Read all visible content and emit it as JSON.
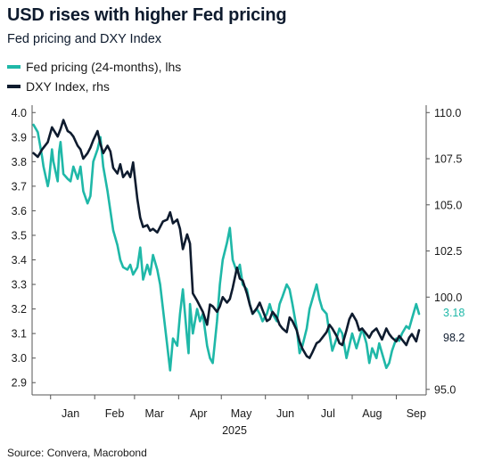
{
  "chart_data": {
    "type": "line",
    "title": "USD rises with higher Fed pricing",
    "subtitle": "Fed pricing and DXY Index",
    "source": "Source: Convera, Macrobond",
    "xlabel": "2025",
    "x_ticks": [
      "Jan",
      "Feb",
      "Mar",
      "Apr",
      "May",
      "Jun",
      "Jul",
      "Aug",
      "Sep"
    ],
    "y_left": {
      "ylim": [
        2.9,
        4.0
      ],
      "ticks": [
        "4.0",
        "3.9",
        "3.8",
        "3.7",
        "3.6",
        "3.5",
        "3.4",
        "3.3",
        "3.2",
        "3.1",
        "3.0",
        "2.9"
      ]
    },
    "y_right": {
      "ylim": [
        95.0,
        110.0
      ],
      "ticks": [
        "110.0",
        "107.5",
        "105.0",
        "102.5",
        "100.0",
        "95.0"
      ]
    },
    "legend_position": "top-left",
    "grid": false,
    "series": [
      {
        "name": "Fed pricing (24-months), lhs",
        "axis": "left",
        "color": "#1fb8a8",
        "end_label": "3.18",
        "x": [
          "2024-12-20",
          "2024-12-23",
          "2024-12-26",
          "2024-12-27",
          "2024-12-30",
          "2024-12-31",
          "2025-01-02",
          "2025-01-03",
          "2025-01-06",
          "2025-01-07",
          "2025-01-08",
          "2025-01-10",
          "2025-01-13",
          "2025-01-15",
          "2025-01-17",
          "2025-01-20",
          "2025-01-22",
          "2025-01-24",
          "2025-01-27",
          "2025-01-29",
          "2025-01-31",
          "2025-02-03",
          "2025-02-05",
          "2025-02-07",
          "2025-02-10",
          "2025-02-12",
          "2025-02-14",
          "2025-02-17",
          "2025-02-19",
          "2025-02-21",
          "2025-02-24",
          "2025-02-26",
          "2025-02-28",
          "2025-03-03",
          "2025-03-05",
          "2025-03-07",
          "2025-03-10",
          "2025-03-12",
          "2025-03-14",
          "2025-03-17",
          "2025-03-19",
          "2025-03-21",
          "2025-03-24",
          "2025-03-26",
          "2025-03-28",
          "2025-03-31",
          "2025-04-02",
          "2025-04-04",
          "2025-04-07",
          "2025-04-08",
          "2025-04-09",
          "2025-04-11",
          "2025-04-14",
          "2025-04-16",
          "2025-04-18",
          "2025-04-21",
          "2025-04-23",
          "2025-04-25",
          "2025-04-28",
          "2025-04-30",
          "2025-05-02",
          "2025-05-05",
          "2025-05-07",
          "2025-05-09",
          "2025-05-12",
          "2025-05-14",
          "2025-05-16",
          "2025-05-19",
          "2025-05-21",
          "2025-05-23",
          "2025-05-26",
          "2025-05-28",
          "2025-05-30",
          "2025-06-02",
          "2025-06-04",
          "2025-06-06",
          "2025-06-09",
          "2025-06-11",
          "2025-06-13",
          "2025-06-16",
          "2025-06-18",
          "2025-06-20",
          "2025-06-23",
          "2025-06-25",
          "2025-06-27",
          "2025-06-30",
          "2025-07-02",
          "2025-07-03",
          "2025-07-07",
          "2025-07-09",
          "2025-07-11",
          "2025-07-14",
          "2025-07-16",
          "2025-07-18",
          "2025-07-21",
          "2025-07-23",
          "2025-07-25",
          "2025-07-28",
          "2025-07-30",
          "2025-08-01",
          "2025-08-04",
          "2025-08-06",
          "2025-08-08",
          "2025-08-11",
          "2025-08-13",
          "2025-08-15",
          "2025-08-18",
          "2025-08-20",
          "2025-08-22",
          "2025-08-25",
          "2025-08-27",
          "2025-08-29",
          "2025-09-01",
          "2025-09-03",
          "2025-09-05",
          "2025-09-08",
          "2025-09-10",
          "2025-09-12",
          "2025-09-15",
          "2025-09-17"
        ],
        "values": [
          3.95,
          3.92,
          3.82,
          3.78,
          3.7,
          3.73,
          3.85,
          3.8,
          3.72,
          3.84,
          3.88,
          3.75,
          3.73,
          3.72,
          3.78,
          3.73,
          3.78,
          3.68,
          3.63,
          3.66,
          3.8,
          3.85,
          3.9,
          3.78,
          3.68,
          3.6,
          3.52,
          3.46,
          3.4,
          3.37,
          3.36,
          3.38,
          3.34,
          3.37,
          3.45,
          3.32,
          3.38,
          3.34,
          3.42,
          3.36,
          3.3,
          3.2,
          3.05,
          2.95,
          3.08,
          3.05,
          3.18,
          3.28,
          3.08,
          3.02,
          3.22,
          3.1,
          3.2,
          3.15,
          3.18,
          3.05,
          3.0,
          2.98,
          3.15,
          3.3,
          3.4,
          3.47,
          3.53,
          3.4,
          3.35,
          3.38,
          3.3,
          3.28,
          3.22,
          3.18,
          3.2,
          3.18,
          3.15,
          3.18,
          3.22,
          3.18,
          3.15,
          3.22,
          3.25,
          3.3,
          3.28,
          3.22,
          3.12,
          3.02,
          3.05,
          3.12,
          3.2,
          3.22,
          3.3,
          3.24,
          3.2,
          3.18,
          3.1,
          3.03,
          3.08,
          3.12,
          3.1,
          3.0,
          3.05,
          3.1,
          3.04,
          3.08,
          3.12,
          3.06,
          2.98,
          3.04,
          3.0,
          3.06,
          3.02,
          2.96,
          2.98,
          3.03,
          3.08,
          3.07,
          3.1,
          3.13,
          3.12,
          3.16,
          3.22,
          3.18
        ]
      },
      {
        "name": "DXY Index, rhs",
        "axis": "right",
        "color": "#0e1b2e",
        "end_label": "98.2",
        "x": [
          "2024-12-20",
          "2024-12-23",
          "2024-12-26",
          "2024-12-30",
          "2025-01-02",
          "2025-01-06",
          "2025-01-08",
          "2025-01-10",
          "2025-01-13",
          "2025-01-15",
          "2025-01-17",
          "2025-01-20",
          "2025-01-22",
          "2025-01-24",
          "2025-01-27",
          "2025-01-29",
          "2025-01-31",
          "2025-02-03",
          "2025-02-05",
          "2025-02-07",
          "2025-02-10",
          "2025-02-12",
          "2025-02-14",
          "2025-02-17",
          "2025-02-19",
          "2025-02-21",
          "2025-02-24",
          "2025-02-26",
          "2025-02-28",
          "2025-03-03",
          "2025-03-05",
          "2025-03-07",
          "2025-03-10",
          "2025-03-12",
          "2025-03-14",
          "2025-03-17",
          "2025-03-19",
          "2025-03-21",
          "2025-03-24",
          "2025-03-26",
          "2025-03-28",
          "2025-03-31",
          "2025-04-02",
          "2025-04-04",
          "2025-04-07",
          "2025-04-09",
          "2025-04-11",
          "2025-04-14",
          "2025-04-16",
          "2025-04-18",
          "2025-04-21",
          "2025-04-23",
          "2025-04-25",
          "2025-04-28",
          "2025-04-30",
          "2025-05-02",
          "2025-05-05",
          "2025-05-07",
          "2025-05-09",
          "2025-05-12",
          "2025-05-14",
          "2025-05-16",
          "2025-05-19",
          "2025-05-21",
          "2025-05-23",
          "2025-05-26",
          "2025-05-28",
          "2025-05-30",
          "2025-06-02",
          "2025-06-04",
          "2025-06-06",
          "2025-06-09",
          "2025-06-11",
          "2025-06-13",
          "2025-06-16",
          "2025-06-18",
          "2025-06-20",
          "2025-06-23",
          "2025-06-25",
          "2025-06-27",
          "2025-06-30",
          "2025-07-02",
          "2025-07-04",
          "2025-07-07",
          "2025-07-09",
          "2025-07-11",
          "2025-07-14",
          "2025-07-16",
          "2025-07-18",
          "2025-07-21",
          "2025-07-23",
          "2025-07-25",
          "2025-07-28",
          "2025-07-30",
          "2025-08-01",
          "2025-08-04",
          "2025-08-06",
          "2025-08-08",
          "2025-08-11",
          "2025-08-13",
          "2025-08-15",
          "2025-08-18",
          "2025-08-20",
          "2025-08-22",
          "2025-08-25",
          "2025-08-27",
          "2025-08-29",
          "2025-09-01",
          "2025-09-03",
          "2025-09-05",
          "2025-09-08",
          "2025-09-10",
          "2025-09-12",
          "2025-09-15",
          "2025-09-17"
        ],
        "values": [
          107.8,
          107.6,
          108.0,
          108.4,
          109.2,
          108.7,
          109.1,
          109.6,
          109.0,
          108.9,
          108.7,
          108.2,
          108.0,
          107.5,
          107.8,
          108.1,
          108.5,
          109.0,
          108.3,
          107.8,
          108.2,
          107.9,
          107.0,
          106.7,
          107.2,
          106.5,
          106.8,
          106.5,
          107.3,
          105.3,
          104.3,
          103.8,
          103.9,
          103.6,
          103.7,
          103.5,
          103.8,
          104.1,
          104.2,
          104.6,
          104.0,
          104.2,
          103.7,
          102.6,
          103.4,
          102.9,
          100.2,
          99.8,
          99.5,
          99.2,
          98.5,
          99.6,
          99.5,
          99.2,
          99.5,
          100.0,
          99.7,
          99.9,
          100.5,
          101.6,
          101.0,
          100.9,
          100.2,
          99.6,
          99.1,
          99.4,
          99.7,
          99.3,
          98.7,
          98.8,
          99.2,
          98.9,
          98.5,
          98.3,
          98.1,
          98.9,
          98.7,
          98.2,
          97.6,
          97.2,
          96.8,
          96.7,
          97.0,
          97.5,
          97.6,
          97.8,
          98.1,
          98.5,
          98.3,
          97.9,
          97.5,
          97.4,
          98.2,
          98.8,
          99.1,
          98.7,
          98.2,
          98.3,
          98.0,
          97.8,
          98.1,
          98.3,
          98.0,
          97.7,
          98.3,
          98.0,
          97.8,
          97.6,
          97.9,
          97.7,
          97.4,
          97.8,
          98.0,
          97.6,
          98.2
        ]
      }
    ]
  }
}
